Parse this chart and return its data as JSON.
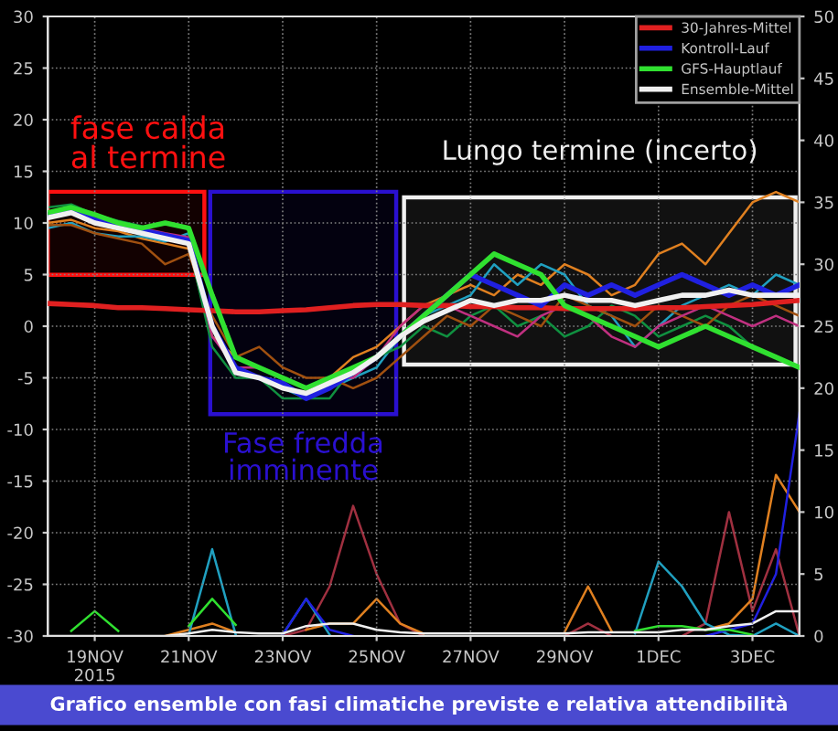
{
  "chart_data": {
    "type": "line",
    "x": [
      "2015-11-18T00:00",
      "2015-11-18T12:00",
      "2015-11-19T00:00",
      "2015-11-19T12:00",
      "2015-11-20T00:00",
      "2015-11-20T12:00",
      "2015-11-21T00:00",
      "2015-11-21T12:00",
      "2015-11-22T00:00",
      "2015-11-22T12:00",
      "2015-11-23T00:00",
      "2015-11-23T12:00",
      "2015-11-24T00:00",
      "2015-11-24T12:00",
      "2015-11-25T00:00",
      "2015-11-25T12:00",
      "2015-11-26T00:00",
      "2015-11-26T12:00",
      "2015-11-27T00:00",
      "2015-11-27T12:00",
      "2015-11-28T00:00",
      "2015-11-28T12:00",
      "2015-11-29T00:00",
      "2015-11-29T12:00",
      "2015-11-30T00:00",
      "2015-11-30T12:00",
      "2015-12-01T00:00",
      "2015-12-01T12:00",
      "2015-12-02T00:00",
      "2015-12-02T12:00",
      "2015-12-03T00:00",
      "2015-12-03T12:00",
      "2015-12-04T00:00"
    ],
    "series": [
      {
        "color": "#e08020",
        "values": [
          10,
          10.3,
          9.5,
          9.2,
          8.5,
          8,
          7.5,
          -1,
          -3,
          -4,
          -5,
          -6,
          -5,
          -3,
          -2,
          0,
          2,
          3,
          4,
          3,
          5,
          4,
          6,
          5,
          3,
          4,
          7,
          8,
          6,
          9,
          12,
          13,
          12
        ]
      },
      {
        "color": "#20a0c0",
        "values": [
          9.5,
          10,
          9,
          8.7,
          8.7,
          8.2,
          9,
          0,
          -4,
          -5,
          -6,
          -7,
          -6,
          -5,
          -4,
          -1,
          1,
          2,
          3,
          6,
          4,
          6,
          5,
          2,
          1,
          -2,
          0,
          2,
          3,
          4,
          3,
          5,
          4
        ]
      },
      {
        "color": "#109040",
        "values": [
          11.5,
          11.8,
          10.8,
          10.2,
          9.7,
          8.5,
          8,
          -2,
          -5,
          -5,
          -7,
          -7,
          -7,
          -4,
          -3,
          -2,
          0,
          -1,
          1,
          2,
          0,
          1,
          -1,
          0,
          2,
          1,
          -1,
          0,
          1,
          0,
          -2,
          -3,
          -4
        ]
      },
      {
        "color": "#a05010",
        "values": [
          9.8,
          9.8,
          9,
          8.5,
          8,
          6,
          7,
          1,
          -3,
          -2,
          -4,
          -5,
          -5,
          -6,
          -5,
          -3,
          -1,
          1,
          0,
          2,
          1,
          0,
          3,
          2,
          1,
          0,
          2,
          1,
          0,
          2,
          3,
          2,
          1
        ]
      },
      {
        "color": "#c03080",
        "values": [
          null,
          null,
          null,
          9.9,
          9.5,
          9,
          8.6,
          -1,
          -4,
          -4,
          -5,
          -6,
          -5,
          -5,
          -3,
          0,
          2,
          2,
          1,
          0,
          -1,
          1,
          2,
          1,
          -1,
          -2,
          0,
          1,
          2,
          1,
          0,
          1,
          0
        ]
      },
      {
        "axis": "y2",
        "color": "#a03040",
        "values": [
          null,
          null,
          null,
          null,
          null,
          null,
          null,
          null,
          null,
          null,
          0,
          0.5,
          4,
          10.5,
          5,
          1,
          0,
          null,
          null,
          null,
          null,
          null,
          0,
          1,
          0,
          null,
          null,
          0,
          1,
          10,
          2,
          7,
          0
        ]
      },
      {
        "axis": "y2",
        "color": "#e08020",
        "values": [
          null,
          null,
          null,
          null,
          null,
          0,
          0.5,
          1,
          0.3,
          null,
          null,
          0.5,
          1,
          1,
          3,
          1,
          0.2,
          null,
          null,
          null,
          null,
          null,
          0.3,
          4,
          0.4,
          null,
          null,
          null,
          0.5,
          1,
          3,
          13,
          10
        ]
      },
      {
        "axis": "y2",
        "color": "#20a0c0",
        "values": [
          null,
          null,
          null,
          null,
          null,
          null,
          0.1,
          7,
          0.1,
          null,
          0.1,
          3,
          0.1,
          null,
          null,
          null,
          null,
          null,
          null,
          null,
          null,
          null,
          null,
          null,
          null,
          0.2,
          6,
          4,
          1,
          0.1,
          0,
          1,
          0
        ]
      },
      {
        "name": "30-Jahres-Mittel",
        "color": "#e02020",
        "values": [
          2.2,
          2.1,
          2.0,
          1.8,
          1.8,
          1.7,
          1.6,
          1.5,
          1.4,
          1.4,
          1.5,
          1.6,
          1.8,
          2.0,
          2.1,
          2.1,
          2.0,
          2.0,
          1.9,
          1.9,
          1.8,
          1.8,
          1.7,
          1.7,
          1.7,
          1.7,
          1.8,
          1.8,
          1.9,
          2.0,
          2.1,
          2.3,
          2.5
        ]
      },
      {
        "name": "Kontroll-Lauf",
        "color": "#2020e0",
        "values": [
          10.8,
          11.3,
          10.3,
          9.8,
          9.3,
          8.8,
          8.3,
          0,
          -4,
          -5,
          -5.5,
          -7,
          -6,
          -4.5,
          -3,
          -1,
          1,
          3,
          5,
          4,
          3,
          2,
          4,
          3,
          4,
          3,
          4,
          5,
          4,
          3,
          4,
          3,
          4
        ]
      },
      {
        "name": "GFS-Hauptlauf",
        "color": "#30e030",
        "values": [
          11,
          11.5,
          10.8,
          10,
          9.5,
          10,
          9.5,
          3,
          -3,
          -4,
          -5,
          -6,
          -5,
          -4,
          -3,
          -1,
          1,
          3,
          5,
          7,
          6,
          5,
          2,
          1,
          0,
          -1,
          -2,
          -1,
          0,
          -1,
          -2,
          -3,
          -4
        ]
      },
      {
        "name": "Ensemble-Mittel",
        "color": "#f0f0f0",
        "values": [
          10.5,
          11,
          10,
          9.5,
          9,
          8.5,
          8,
          0,
          -4.5,
          -5,
          -6,
          -6.5,
          -5.5,
          -4.5,
          -3,
          -1,
          0.5,
          1.5,
          2.5,
          2,
          2.5,
          2.5,
          3,
          2.5,
          2.5,
          2,
          2.5,
          3,
          3,
          3.5,
          3,
          3,
          3
        ]
      },
      {
        "axis": "y2",
        "color": "#2020e0",
        "values": [
          null,
          null,
          null,
          null,
          null,
          null,
          null,
          null,
          null,
          null,
          0.1,
          3,
          0.5,
          0,
          null,
          null,
          null,
          null,
          null,
          null,
          null,
          null,
          null,
          null,
          null,
          null,
          null,
          null,
          0,
          0.5,
          1,
          5,
          18
        ]
      },
      {
        "axis": "y2",
        "color": "#30e030",
        "values": [
          null,
          0.4,
          2,
          0.4,
          null,
          null,
          0.8,
          3,
          0.9,
          null,
          null,
          null,
          null,
          null,
          null,
          null,
          null,
          null,
          null,
          null,
          null,
          null,
          null,
          null,
          null,
          0.4,
          0.8,
          0.8,
          0.5,
          0.5,
          0.1,
          null,
          null
        ]
      },
      {
        "axis": "y2",
        "color": "#f0f0f0",
        "values": [
          0,
          0,
          0,
          0,
          0,
          0,
          0.2,
          0.5,
          0.3,
          0.2,
          0.2,
          0.8,
          1,
          1,
          0.5,
          0.3,
          0.2,
          0.2,
          0.2,
          0.2,
          0.2,
          0.2,
          0.2,
          0.3,
          0.3,
          0.3,
          0.3,
          0.5,
          0.5,
          0.8,
          1,
          2,
          2
        ]
      }
    ],
    "xlim": [
      "2015-11-18T00:00",
      "2015-12-04T00:00"
    ],
    "xticks": [
      {
        "value": "2015-11-19",
        "label": "19NOV\n2015"
      },
      {
        "value": "2015-11-21",
        "label": "21NOV"
      },
      {
        "value": "2015-11-23",
        "label": "23NOV"
      },
      {
        "value": "2015-11-25",
        "label": "25NOV"
      },
      {
        "value": "2015-11-27",
        "label": "27NOV"
      },
      {
        "value": "2015-11-29",
        "label": "29NOV"
      },
      {
        "value": "2015-12-01",
        "label": "1DEC"
      },
      {
        "value": "2015-12-03",
        "label": "3DEC"
      }
    ],
    "ylim": [
      -30,
      30
    ],
    "yticks": [
      -30,
      -25,
      -20,
      -15,
      -10,
      -5,
      0,
      5,
      10,
      15,
      20,
      25,
      30
    ],
    "y2lim": [
      0,
      50
    ],
    "y2ticks": [
      0,
      5,
      10,
      15,
      20,
      25,
      30,
      35,
      40,
      45,
      50
    ],
    "bands": [
      {
        "axis": "x",
        "from": "2015-11-18T00:00",
        "to": "2015-11-21T08:00",
        "label": "fase calda\nal termine",
        "color": "#ff1010"
      },
      {
        "axis": "x",
        "from": "2015-11-21T11:00",
        "to": "2015-11-25T10:00",
        "label": "Fase fredda\nimminente",
        "color": "#2a10d0"
      },
      {
        "axis": "x",
        "from": "2015-11-25T14:00",
        "to": "2015-12-03T22:00",
        "label": "Lungo termine (incerto)",
        "color": "#f0f0f0"
      }
    ],
    "annotations": [
      "Grafico ensemble con fasi climatiche previste e relativa attendibilità"
    ],
    "grid": true,
    "legend": "top right",
    "line_style": "solid",
    "marker": "none"
  }
}
